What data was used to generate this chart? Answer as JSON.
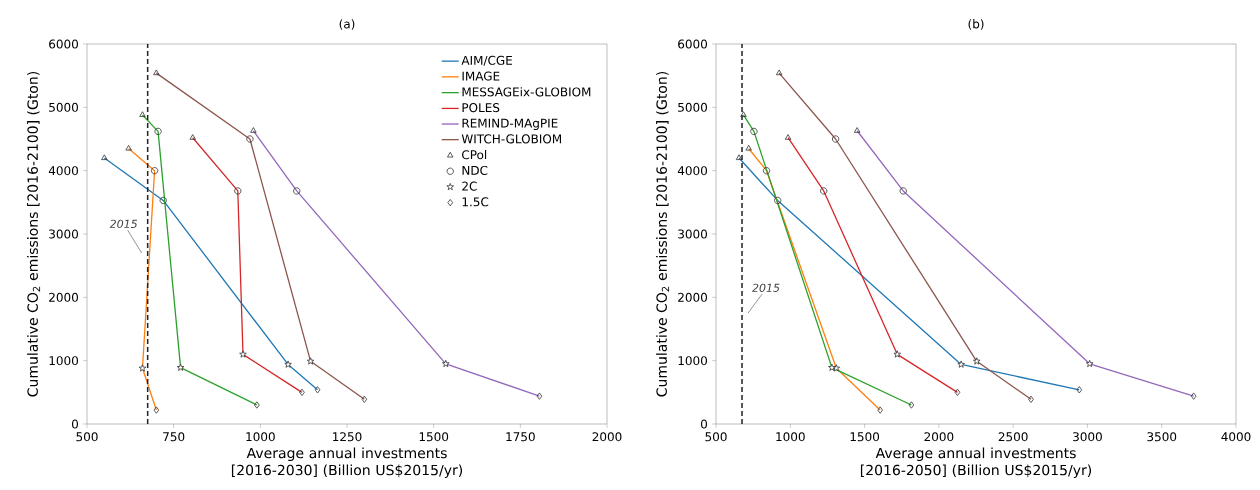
{
  "chart_data": [
    {
      "type": "line",
      "title": "(a)",
      "xlabel": "Average annual investments [2016-2030] (Billion US$2015/yr)",
      "ylabel": "Cumulative CO$_{2}$ emissions [2016-2100] (Gton)",
      "xlim": [
        500,
        2000
      ],
      "ylim": [
        0,
        6000
      ],
      "xticks": [
        500,
        750,
        1000,
        1250,
        1500,
        1750,
        2000
      ],
      "yticks": [
        0,
        1000,
        2000,
        3000,
        4000,
        5000,
        6000
      ],
      "legend": "top right",
      "series": [
        {
          "name": "AIM/CGE",
          "color": "#1f77b4",
          "x": [
            550,
            720,
            1080,
            1165
          ],
          "values": [
            4200,
            3530,
            940,
            540
          ]
        },
        {
          "name": "IMAGE",
          "color": "#ff7f0e",
          "x": [
            620,
            695,
            660,
            700
          ],
          "values": [
            4350,
            4000,
            880,
            220
          ]
        },
        {
          "name": "MESSAGEix-GLOBIOM",
          "color": "#2ca02c",
          "x": [
            660,
            705,
            770,
            990
          ],
          "values": [
            4880,
            4620,
            890,
            300
          ]
        },
        {
          "name": "POLES",
          "color": "#d62728",
          "x": [
            805,
            935,
            950,
            1120
          ],
          "values": [
            4520,
            3680,
            1100,
            500
          ]
        },
        {
          "name": "REMIND-MAgPIE",
          "color": "#9467bd",
          "x": [
            980,
            1105,
            1535,
            1805
          ],
          "values": [
            4630,
            3680,
            950,
            440
          ]
        },
        {
          "name": "WITCH-GLOBIOM",
          "color": "#8c564b",
          "x": [
            700,
            970,
            1145,
            1300
          ],
          "values": [
            5540,
            4500,
            990,
            390
          ]
        },
        {
          "name": "CPol",
          "type": "scatter",
          "marker": "triangle",
          "color": "#333333",
          "x": [
            550,
            620,
            660,
            805,
            980,
            700
          ],
          "values": [
            4200,
            4350,
            4880,
            4520,
            4630,
            5540
          ]
        },
        {
          "name": "NDC",
          "type": "scatter",
          "marker": "circle",
          "color": "#333333",
          "x": [
            720,
            695,
            705,
            935,
            1105,
            970
          ],
          "values": [
            3530,
            4000,
            4620,
            3680,
            3680,
            4500
          ]
        },
        {
          "name": "2C",
          "type": "scatter",
          "marker": "star",
          "color": "#333333",
          "x": [
            1080,
            660,
            770,
            950,
            1535,
            1145
          ],
          "values": [
            940,
            880,
            890,
            1100,
            950,
            990
          ]
        },
        {
          "name": "1.5C",
          "type": "scatter",
          "marker": "diamond",
          "color": "#333333",
          "x": [
            1165,
            700,
            990,
            1120,
            1805,
            1300
          ],
          "values": [
            540,
            220,
            300,
            500,
            440,
            390
          ]
        }
      ],
      "ref_lines": [
        {
          "axis": "x",
          "value": 675,
          "line_style": "dashed",
          "color": "#222222"
        }
      ],
      "annotations": [
        {
          "text": "2015",
          "x": 675,
          "y": 2700
        }
      ]
    },
    {
      "type": "line",
      "title": "(b)",
      "xlabel": "Average annual investments [2016-2050] (Billion US$2015/yr)",
      "ylabel": "Cumulative CO$_{2}$ emissions [2016-2100] (Gton)",
      "xlim": [
        500,
        4000
      ],
      "ylim": [
        0,
        6000
      ],
      "xticks": [
        500,
        1000,
        1500,
        2000,
        2500,
        3000,
        3500,
        4000
      ],
      "yticks": [
        0,
        1000,
        2000,
        3000,
        4000,
        5000,
        6000
      ],
      "series": [
        {
          "color": "#1f77b4",
          "x": [
            655,
            915,
            2150,
            2945
          ],
          "values": [
            4200,
            3530,
            940,
            540
          ]
        },
        {
          "color": "#ff7f0e",
          "x": [
            720,
            840,
            1310,
            1605
          ],
          "values": [
            4350,
            4000,
            880,
            220
          ]
        },
        {
          "color": "#2ca02c",
          "x": [
            685,
            755,
            1280,
            1815
          ],
          "values": [
            4880,
            4620,
            890,
            300
          ]
        },
        {
          "color": "#d62728",
          "x": [
            985,
            1225,
            1720,
            2125
          ],
          "values": [
            4520,
            3680,
            1100,
            500
          ]
        },
        {
          "color": "#9467bd",
          "x": [
            1450,
            1760,
            3015,
            3715
          ],
          "values": [
            4630,
            3680,
            950,
            440
          ]
        },
        {
          "color": "#8c564b",
          "x": [
            925,
            1305,
            2255,
            2620
          ],
          "values": [
            5540,
            4500,
            990,
            390
          ]
        },
        {
          "type": "scatter",
          "marker": "triangle",
          "color": "#333333",
          "x": [
            655,
            720,
            685,
            985,
            1450,
            925
          ],
          "values": [
            4200,
            4350,
            4880,
            4520,
            4630,
            5540
          ]
        },
        {
          "type": "scatter",
          "marker": "circle",
          "color": "#333333",
          "x": [
            915,
            840,
            755,
            1225,
            1760,
            1305
          ],
          "values": [
            3530,
            4000,
            4620,
            3680,
            3680,
            4500
          ]
        },
        {
          "type": "scatter",
          "marker": "star",
          "color": "#333333",
          "x": [
            2150,
            1310,
            1280,
            1720,
            3015,
            2255
          ],
          "values": [
            940,
            880,
            890,
            1100,
            950,
            990
          ]
        },
        {
          "type": "scatter",
          "marker": "diamond",
          "color": "#333333",
          "x": [
            2945,
            1605,
            1815,
            2125,
            3715,
            2620
          ],
          "values": [
            540,
            220,
            300,
            500,
            440,
            390
          ]
        }
      ],
      "ref_lines": [
        {
          "axis": "x",
          "value": 675,
          "line_style": "dashed",
          "color": "#222222"
        }
      ],
      "annotations": [
        {
          "text": "2015",
          "x": 675,
          "y": 1750
        }
      ]
    }
  ]
}
